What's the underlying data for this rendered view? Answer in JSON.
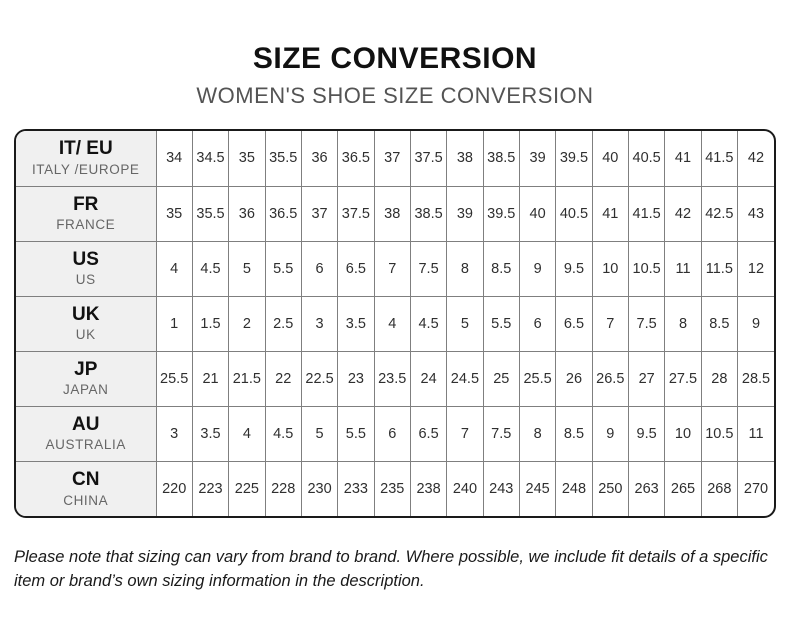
{
  "title": "SIZE CONVERSION",
  "subtitle": "WOMEN'S SHOE SIZE CONVERSION",
  "table": {
    "rows": [
      {
        "code": "IT/ EU",
        "region": "ITALY /EUROPE",
        "values": [
          "34",
          "34.5",
          "35",
          "35.5",
          "36",
          "36.5",
          "37",
          "37.5",
          "38",
          "38.5",
          "39",
          "39.5",
          "40",
          "40.5",
          "41",
          "41.5",
          "42"
        ]
      },
      {
        "code": "FR",
        "region": "FRANCE",
        "values": [
          "35",
          "35.5",
          "36",
          "36.5",
          "37",
          "37.5",
          "38",
          "38.5",
          "39",
          "39.5",
          "40",
          "40.5",
          "41",
          "41.5",
          "42",
          "42.5",
          "43"
        ]
      },
      {
        "code": "US",
        "region": "US",
        "values": [
          "4",
          "4.5",
          "5",
          "5.5",
          "6",
          "6.5",
          "7",
          "7.5",
          "8",
          "8.5",
          "9",
          "9.5",
          "10",
          "10.5",
          "11",
          "11.5",
          "12"
        ]
      },
      {
        "code": "UK",
        "region": "UK",
        "values": [
          "1",
          "1.5",
          "2",
          "2.5",
          "3",
          "3.5",
          "4",
          "4.5",
          "5",
          "5.5",
          "6",
          "6.5",
          "7",
          "7.5",
          "8",
          "8.5",
          "9"
        ]
      },
      {
        "code": "JP",
        "region": "JAPAN",
        "values": [
          "25.5",
          "21",
          "21.5",
          "22",
          "22.5",
          "23",
          "23.5",
          "24",
          "24.5",
          "25",
          "25.5",
          "26",
          "26.5",
          "27",
          "27.5",
          "28",
          "28.5"
        ]
      },
      {
        "code": "AU",
        "region": "AUSTRALIA",
        "values": [
          "3",
          "3.5",
          "4",
          "4.5",
          "5",
          "5.5",
          "6",
          "6.5",
          "7",
          "7.5",
          "8",
          "8.5",
          "9",
          "9.5",
          "10",
          "10.5",
          "11"
        ]
      },
      {
        "code": "CN",
        "region": "CHINA",
        "values": [
          "220",
          "223",
          "225",
          "228",
          "230",
          "233",
          "235",
          "238",
          "240",
          "243",
          "245",
          "248",
          "250",
          "263",
          "265",
          "268",
          "270"
        ]
      }
    ]
  },
  "footer_note": "Please note that sizing can vary from brand to brand. Where possible, we include fit details of a specific item or brand’s own sizing information in the description.",
  "colors": {
    "outer_border": "#1a1a1a",
    "cell_border": "#7f7f7f",
    "header_bg": "#f0f0f0",
    "title": "#111111",
    "subtitle": "#545454",
    "region_label": "#666666",
    "value_text": "#2f2f2f"
  }
}
